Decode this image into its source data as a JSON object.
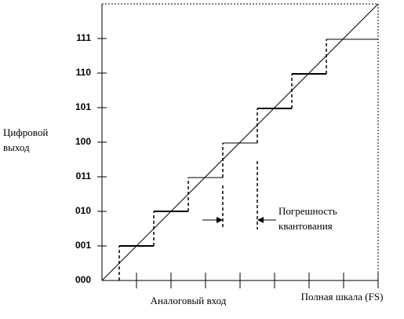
{
  "y_axis": {
    "label_lines": [
      "Цифровой",
      "выход"
    ],
    "codes": [
      "000",
      "001",
      "010",
      "011",
      "100",
      "101",
      "110",
      "111"
    ]
  },
  "x_axis": {
    "label": "Аналоговый вход",
    "full_scale_label": "Полная шкала (FS)"
  },
  "annotation": {
    "lines": [
      "Погрешность",
      "квантования"
    ]
  }
}
